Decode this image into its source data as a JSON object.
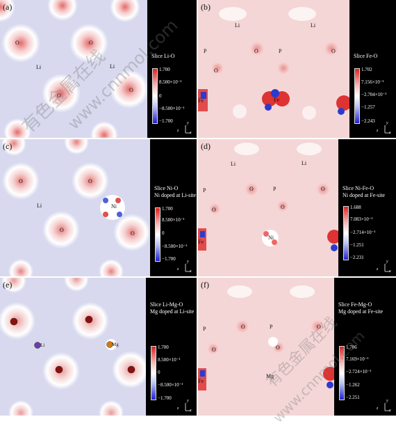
{
  "watermark": {
    "cn": "有色金属在线",
    "url": "www.cnnmol.com"
  },
  "panels": [
    {
      "label": "(a)",
      "slice": [
        "Slice Li-O"
      ],
      "ticks": [
        "1.700",
        "8.500×10⁻¹",
        "0",
        "−8.500×10⁻¹",
        "−1.700"
      ],
      "atoms": [
        "O",
        "O",
        "Li",
        "Li",
        "O",
        "O"
      ]
    },
    {
      "label": "(b)",
      "slice": [
        "Slice Fe-O"
      ],
      "ticks": [
        "1.702",
        "7.156×10⁻¹",
        "−2.704×10⁻¹",
        "−1.257",
        "−2.243"
      ],
      "atoms": [
        "Li",
        "Li",
        "P",
        "O",
        "P",
        "O",
        "O",
        "Fe",
        "Fe"
      ]
    },
    {
      "label": "(c)",
      "slice": [
        "Slice Ni-O",
        "Ni doped at Li-site"
      ],
      "ticks": [
        "1.700",
        "8.500×10⁻¹",
        "0",
        "−8.500×10⁻¹",
        "−1.700"
      ],
      "atoms": [
        "O",
        "O",
        "Li",
        "Ni",
        "O",
        "O"
      ]
    },
    {
      "label": "(d)",
      "slice": [
        "Slice Ni-Fe-O",
        "Ni doped at Fe-site"
      ],
      "ticks": [
        "1.688",
        "7.083×10⁻¹",
        "−2.714×10⁻¹",
        "−1.251",
        "−2.231"
      ],
      "atoms": [
        "Li",
        "Li",
        "P",
        "O",
        "P",
        "O",
        "O",
        "O",
        "Fe",
        "Ni"
      ]
    },
    {
      "label": "(e)",
      "slice": [
        "Slice Li-Mg-O",
        "Mg doped at Li-site"
      ],
      "ticks": [
        "1.700",
        "8.500×10⁻¹",
        "0",
        "−8.500×10⁻¹",
        "−1.700"
      ],
      "atoms": [
        "Li",
        "Mg"
      ]
    },
    {
      "label": "(f)",
      "slice": [
        "Slice Fe-Mg-O",
        "Mg doped at Fe-site"
      ],
      "ticks": [
        "1.706",
        "7.169×10⁻¹",
        "−2.724×10⁻¹",
        "−1.262",
        "−2.251"
      ],
      "atoms": [
        "P",
        "O",
        "P",
        "O",
        "O",
        "O",
        "Fe",
        "Mg"
      ]
    }
  ],
  "axis": {
    "z": "z",
    "x": "x",
    "y": "y"
  },
  "colors": {
    "lavender": "#d6d8ee",
    "pink": "#f2d4d4",
    "black": "#000000"
  }
}
